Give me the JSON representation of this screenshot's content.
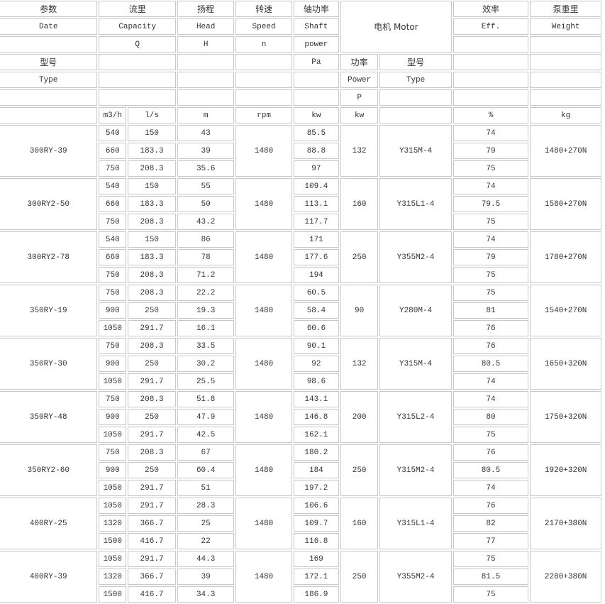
{
  "header": {
    "param_cn": "参数",
    "param_en": "Date",
    "capacity_cn": "流里",
    "capacity_en": "Capacity",
    "capacity_sym": "Q",
    "head_cn": "扬程",
    "head_en": "Head",
    "head_sym": "H",
    "speed_cn": "转速",
    "speed_en": "Speed",
    "speed_sym": "n",
    "shaft_cn": "轴功率",
    "shaft_en": "Shaft",
    "shaft_en2": "power",
    "shaft_sym": "Pa",
    "motor": "电机 Motor",
    "motor_power_cn": "功率",
    "motor_power_en": "Power",
    "motor_power_sym": "P",
    "motor_type_cn": "型号",
    "motor_type_en": "Type",
    "eff_cn": "效率",
    "eff_en": "Eff.",
    "weight_cn": "泵重里",
    "weight_en": "Weight",
    "type_cn": "型号",
    "type_en": "Type",
    "units": {
      "q_m3h": "m3/h",
      "q_ls": "l/s",
      "head": "m",
      "speed": "rpm",
      "shaft": "kw",
      "motor_power": "kw",
      "eff": "%",
      "weight": "kg"
    }
  },
  "models": [
    {
      "name": "300RY-39",
      "speed": "1480",
      "motor_power": "132",
      "motor_type": "Y315M-4",
      "weight": "1480+270N",
      "points": [
        [
          "540",
          "150",
          "43",
          "85.5",
          "74"
        ],
        [
          "660",
          "183.3",
          "39",
          "88.8",
          "79"
        ],
        [
          "750",
          "208.3",
          "35.6",
          "97",
          "75"
        ]
      ]
    },
    {
      "name": "300RY2-50",
      "speed": "1480",
      "motor_power": "160",
      "motor_type": "Y315L1-4",
      "weight": "1580+270N",
      "points": [
        [
          "540",
          "150",
          "55",
          "109.4",
          "74"
        ],
        [
          "660",
          "183.3",
          "50",
          "113.1",
          "79.5"
        ],
        [
          "750",
          "208.3",
          "43.2",
          "117.7",
          "75"
        ]
      ]
    },
    {
      "name": "300RY2-78",
      "speed": "1480",
      "motor_power": "250",
      "motor_type": "Y355M2-4",
      "weight": "1780+270N",
      "points": [
        [
          "540",
          "150",
          "86",
          "171",
          "74"
        ],
        [
          "660",
          "183.3",
          "78",
          "177.6",
          "79"
        ],
        [
          "750",
          "208.3",
          "71.2",
          "194",
          "75"
        ]
      ]
    },
    {
      "name": "350RY-19",
      "speed": "1480",
      "motor_power": "90",
      "motor_type": "Y280M-4",
      "weight": "1540+270N",
      "points": [
        [
          "750",
          "208.3",
          "22.2",
          "60.5",
          "75"
        ],
        [
          "900",
          "250",
          "19.3",
          "58.4",
          "81"
        ],
        [
          "1050",
          "291.7",
          "16.1",
          "60.6",
          "76"
        ]
      ]
    },
    {
      "name": "350RY-30",
      "speed": "1480",
      "motor_power": "132",
      "motor_type": "Y315M-4",
      "weight": "1650+320N",
      "points": [
        [
          "750",
          "208.3",
          "33.5",
          "90.1",
          "76"
        ],
        [
          "900",
          "250",
          "30.2",
          "92",
          "80.5"
        ],
        [
          "1050",
          "291.7",
          "25.5",
          "98.6",
          "74"
        ]
      ]
    },
    {
      "name": "350RY-48",
      "speed": "1480",
      "motor_power": "200",
      "motor_type": "Y315L2-4",
      "weight": "1750+320N",
      "points": [
        [
          "750",
          "208.3",
          "51.8",
          "143.1",
          "74"
        ],
        [
          "900",
          "250",
          "47.9",
          "146.8",
          "80"
        ],
        [
          "1050",
          "291.7",
          "42.5",
          "162.1",
          "75"
        ]
      ]
    },
    {
      "name": "350RY2-60",
      "speed": "1480",
      "motor_power": "250",
      "motor_type": "Y315M2-4",
      "weight": "1920+320N",
      "points": [
        [
          "750",
          "208.3",
          "67",
          "180.2",
          "76"
        ],
        [
          "900",
          "250",
          "60.4",
          "184",
          "80.5"
        ],
        [
          "1050",
          "291.7",
          "51",
          "197.2",
          "74"
        ]
      ]
    },
    {
      "name": "400RY-25",
      "speed": "1480",
      "motor_power": "160",
      "motor_type": "Y315L1-4",
      "weight": "2170+380N",
      "points": [
        [
          "1050",
          "291.7",
          "28.3",
          "106.6",
          "76"
        ],
        [
          "1320",
          "366.7",
          "25",
          "109.7",
          "82"
        ],
        [
          "1500",
          "416.7",
          "22",
          "116.8",
          "77"
        ]
      ]
    },
    {
      "name": "400RY-39",
      "speed": "1480",
      "motor_power": "250",
      "motor_type": "Y355M2-4",
      "weight": "2280+380N",
      "points": [
        [
          "1050",
          "291.7",
          "44.3",
          "169",
          "75"
        ],
        [
          "1320",
          "366.7",
          "39",
          "172.1",
          "81.5"
        ],
        [
          "1500",
          "416.7",
          "34.3",
          "186.9",
          "75"
        ]
      ]
    }
  ]
}
